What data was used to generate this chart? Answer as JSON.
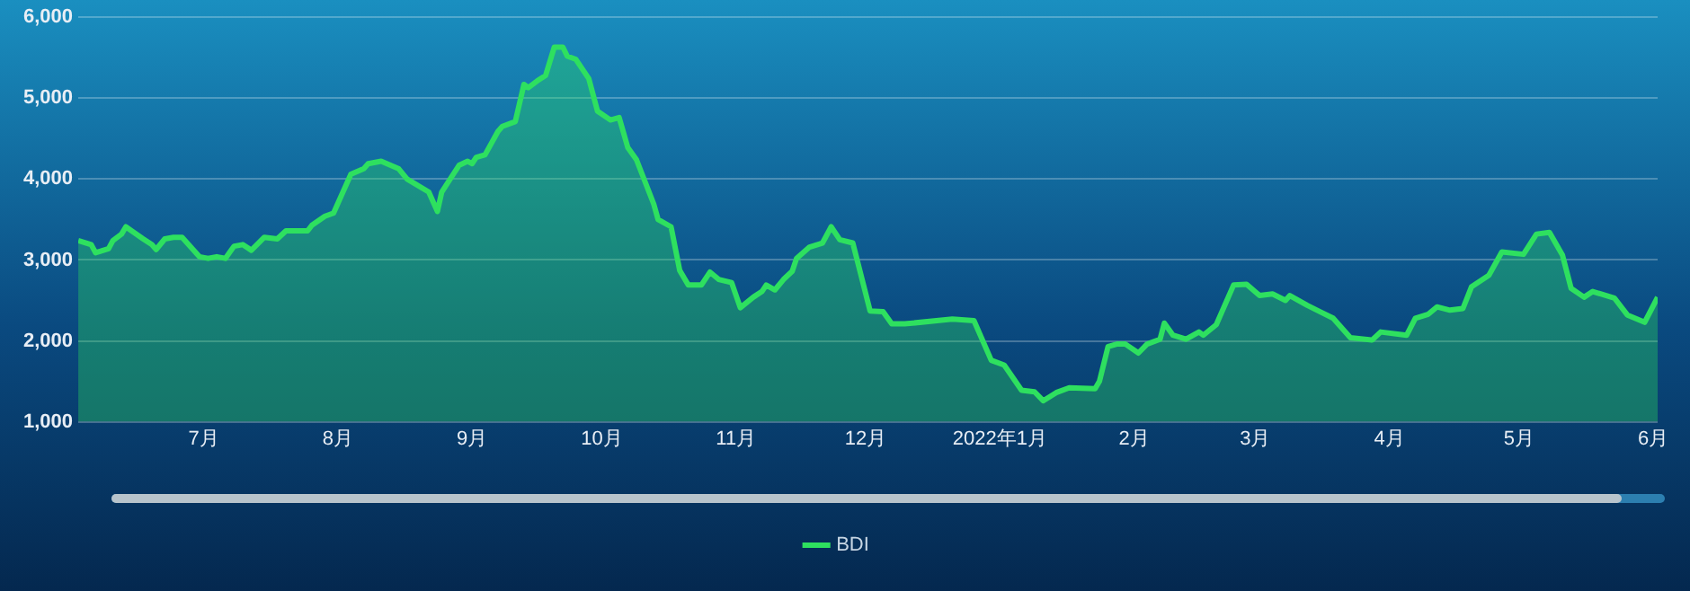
{
  "chart_data": {
    "type": "area",
    "x": [
      "2021-06-02",
      "2021-06-05",
      "2021-06-06",
      "2021-06-09",
      "2021-06-10",
      "2021-06-12",
      "2021-06-13",
      "2021-06-17",
      "2021-06-19",
      "2021-06-20",
      "2021-06-22",
      "2021-06-24",
      "2021-06-26",
      "2021-06-30",
      "2021-07-02",
      "2021-07-04",
      "2021-07-06",
      "2021-07-08",
      "2021-07-10",
      "2021-07-12",
      "2021-07-15",
      "2021-07-18",
      "2021-07-20",
      "2021-07-25",
      "2021-07-26",
      "2021-07-29",
      "2021-07-31",
      "2021-08-04",
      "2021-08-07",
      "2021-08-08",
      "2021-08-11",
      "2021-08-15",
      "2021-08-17",
      "2021-08-22",
      "2021-08-24",
      "2021-08-25",
      "2021-08-29",
      "2021-08-31",
      "2021-09-01",
      "2021-09-02",
      "2021-09-04",
      "2021-09-07",
      "2021-09-08",
      "2021-09-11",
      "2021-09-13",
      "2021-09-14",
      "2021-09-16",
      "2021-09-18",
      "2021-09-20",
      "2021-09-22",
      "2021-09-23",
      "2021-09-25",
      "2021-09-28",
      "2021-09-30",
      "2021-10-03",
      "2021-10-05",
      "2021-10-07",
      "2021-10-09",
      "2021-10-13",
      "2021-10-14",
      "2021-10-17",
      "2021-10-19",
      "2021-10-21",
      "2021-10-24",
      "2021-10-26",
      "2021-10-28",
      "2021-10-31",
      "2021-11-02",
      "2021-11-05",
      "2021-11-07",
      "2021-11-08",
      "2021-11-10",
      "2021-11-12",
      "2021-11-14",
      "2021-11-15",
      "2021-11-18",
      "2021-11-21",
      "2021-11-23",
      "2021-11-25",
      "2021-11-28",
      "2021-12-01",
      "2021-12-02",
      "2021-12-05",
      "2021-12-07",
      "2021-12-10",
      "2021-12-21",
      "2021-12-26",
      "2021-12-30",
      "2022-01-02",
      "2022-01-06",
      "2022-01-09",
      "2022-01-11",
      "2022-01-14",
      "2022-01-17",
      "2022-01-23",
      "2022-01-24",
      "2022-01-26",
      "2022-01-28",
      "2022-01-30",
      "2022-02-02",
      "2022-02-04",
      "2022-02-07",
      "2022-02-08",
      "2022-02-10",
      "2022-02-13",
      "2022-02-16",
      "2022-02-17",
      "2022-02-20",
      "2022-02-24",
      "2022-02-27",
      "2022-03-02",
      "2022-03-05",
      "2022-03-08",
      "2022-03-09",
      "2022-03-13",
      "2022-03-16",
      "2022-03-19",
      "2022-03-23",
      "2022-03-28",
      "2022-03-30",
      "2022-04-05",
      "2022-04-07",
      "2022-04-10",
      "2022-04-12",
      "2022-04-15",
      "2022-04-18",
      "2022-04-20",
      "2022-04-24",
      "2022-04-27",
      "2022-05-02",
      "2022-05-05",
      "2022-05-08",
      "2022-05-11",
      "2022-05-13",
      "2022-05-16",
      "2022-05-18",
      "2022-05-23",
      "2022-05-26",
      "2022-05-30",
      "2022-06-02"
    ],
    "series": [
      {
        "name": "BDI",
        "color": "#2ee05f",
        "values": [
          3240,
          3190,
          3090,
          3140,
          3240,
          3320,
          3410,
          3260,
          3190,
          3130,
          3260,
          3280,
          3280,
          3040,
          3020,
          3040,
          3020,
          3170,
          3190,
          3120,
          3280,
          3260,
          3360,
          3360,
          3430,
          3540,
          3580,
          4060,
          4130,
          4190,
          4220,
          4130,
          4000,
          3840,
          3600,
          3840,
          4170,
          4220,
          4190,
          4270,
          4300,
          4590,
          4650,
          4710,
          5170,
          5130,
          5210,
          5280,
          5630,
          5630,
          5520,
          5480,
          5240,
          4840,
          4730,
          4760,
          4390,
          4240,
          3690,
          3500,
          3410,
          2870,
          2690,
          2690,
          2850,
          2760,
          2720,
          2410,
          2540,
          2610,
          2690,
          2630,
          2760,
          2860,
          3020,
          3160,
          3210,
          3410,
          3250,
          3210,
          2580,
          2370,
          2360,
          2210,
          2210,
          2270,
          2250,
          1760,
          1700,
          1390,
          1370,
          1260,
          1360,
          1420,
          1410,
          1500,
          1930,
          1960,
          1960,
          1850,
          1960,
          2020,
          2220,
          2070,
          2020,
          2110,
          2070,
          2200,
          2690,
          2700,
          2560,
          2580,
          2500,
          2560,
          2440,
          2360,
          2280,
          2040,
          2010,
          2110,
          2070,
          2280,
          2330,
          2420,
          2380,
          2400,
          2670,
          2810,
          3100,
          3070,
          3320,
          3340,
          3060,
          2650,
          2540,
          2610,
          2530,
          2320,
          2230,
          2540
        ]
      }
    ],
    "xlim": [
      "2021-06-02",
      "2022-06-02"
    ],
    "xticks": [
      {
        "value": "2021-07-01",
        "label": "7月"
      },
      {
        "value": "2021-08-01",
        "label": "8月"
      },
      {
        "value": "2021-09-01",
        "label": "9月"
      },
      {
        "value": "2021-10-01",
        "label": "10月"
      },
      {
        "value": "2021-11-01",
        "label": "11月"
      },
      {
        "value": "2021-12-01",
        "label": "12月"
      },
      {
        "value": "2022-01-01",
        "label": "2022年1月"
      },
      {
        "value": "2022-02-01",
        "label": "2月"
      },
      {
        "value": "2022-03-01",
        "label": "3月"
      },
      {
        "value": "2022-04-01",
        "label": "4月"
      },
      {
        "value": "2022-05-01",
        "label": "5月"
      },
      {
        "value": "2022-06-01",
        "label": "6月"
      }
    ],
    "ylim": [
      1000,
      6000
    ],
    "yticks": [
      {
        "value": 1000,
        "label": "1,000"
      },
      {
        "value": 2000,
        "label": "2,000"
      },
      {
        "value": 3000,
        "label": "3,000"
      },
      {
        "value": 4000,
        "label": "4,000"
      },
      {
        "value": 5000,
        "label": "5,000"
      },
      {
        "value": 6000,
        "label": "6,000"
      }
    ],
    "grid": "y",
    "legend": "bottom",
    "marker": "none",
    "line_style": "solid"
  }
}
